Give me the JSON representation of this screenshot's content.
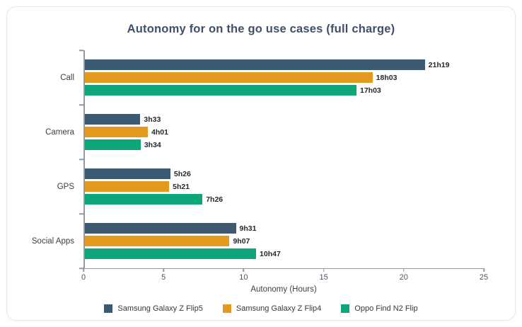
{
  "card": {
    "title": "Autonomy for on the go use cases (full charge)"
  },
  "chart_data": {
    "type": "bar",
    "orientation": "horizontal",
    "title": "Autonomy for on the go use cases (full charge)",
    "categories": [
      "Call",
      "Camera",
      "GPS",
      "Social Apps"
    ],
    "series": [
      {
        "name": "Samsung Galaxy Z Flip5",
        "color": "#3d5a73",
        "values": [
          21.32,
          3.55,
          5.43,
          9.52
        ],
        "labels": [
          "21h19",
          "3h33",
          "5h26",
          "9h31"
        ]
      },
      {
        "name": "Samsung Galaxy Z Flip4",
        "color": "#e49a1e",
        "values": [
          18.05,
          4.02,
          5.35,
          9.12
        ],
        "labels": [
          "18h03",
          "4h01",
          "5h21",
          "9h07"
        ]
      },
      {
        "name": "Oppo Find N2 Flip",
        "color": "#0da57a",
        "values": [
          17.05,
          3.57,
          7.43,
          10.78
        ],
        "labels": [
          "17h03",
          "3h34",
          "7h26",
          "10h47"
        ]
      }
    ],
    "xlabel": "Autonomy (Hours)",
    "xlim": [
      0,
      25
    ],
    "xticks": [
      0,
      5,
      10,
      15,
      20,
      25
    ],
    "legend_position": "bottom",
    "grid": false,
    "axis_color": "#8f98a3"
  }
}
